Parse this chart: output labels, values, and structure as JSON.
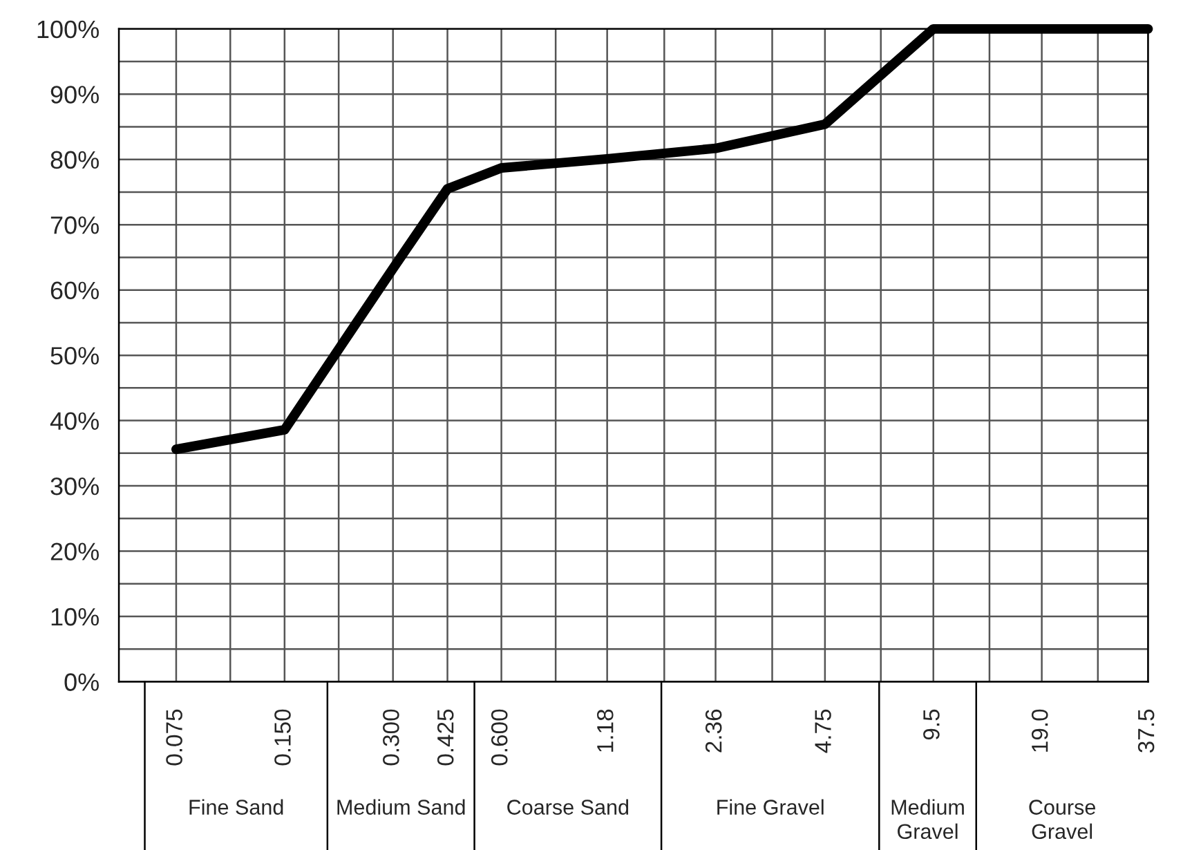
{
  "chart_data": {
    "type": "line",
    "log": "x",
    "x": [
      0.075,
      0.15,
      0.3,
      0.425,
      0.6,
      1.18,
      2.36,
      4.75,
      9.5,
      19.0,
      37.5
    ],
    "series": [
      {
        "color": "#000000",
        "values": [
          35.6,
          38.6,
          63.3,
          75.5,
          78.7,
          80.1,
          81.7,
          85.4,
          100,
          100,
          100
        ]
      }
    ],
    "xlim": [
      0.052,
      37.5
    ],
    "xticks": [
      {
        "value": 0.075,
        "label": "0.075"
      },
      {
        "value": 0.106,
        "label": null
      },
      {
        "value": 0.15,
        "label": "0.150"
      },
      {
        "value": 0.212,
        "label": null
      },
      {
        "value": 0.3,
        "label": "0.300"
      },
      {
        "value": 0.425,
        "label": "0.425"
      },
      {
        "value": 0.6,
        "label": "0.600"
      },
      {
        "value": 0.849,
        "label": null
      },
      {
        "value": 1.18,
        "label": "1.18"
      },
      {
        "value": 1.7,
        "label": null
      },
      {
        "value": 2.36,
        "label": "2.36"
      },
      {
        "value": 3.39,
        "label": null
      },
      {
        "value": 4.75,
        "label": "4.75"
      },
      {
        "value": 6.79,
        "label": null
      },
      {
        "value": 9.5,
        "label": "9.5"
      },
      {
        "value": 13.6,
        "label": null
      },
      {
        "value": 19.0,
        "label": "19.0"
      },
      {
        "value": 27.2,
        "label": null
      },
      {
        "value": 37.5,
        "label": "37.5"
      }
    ],
    "ylim": [
      0,
      100
    ],
    "yticks": [
      {
        "value": 0,
        "label": "0%"
      },
      {
        "value": 5,
        "label": null
      },
      {
        "value": 10,
        "label": "10%"
      },
      {
        "value": 15,
        "label": null
      },
      {
        "value": 20,
        "label": "20%"
      },
      {
        "value": 25,
        "label": null
      },
      {
        "value": 30,
        "label": "30%"
      },
      {
        "value": 35,
        "label": null
      },
      {
        "value": 40,
        "label": "40%"
      },
      {
        "value": 45,
        "label": null
      },
      {
        "value": 50,
        "label": "50%"
      },
      {
        "value": 55,
        "label": null
      },
      {
        "value": 60,
        "label": "60%"
      },
      {
        "value": 65,
        "label": null
      },
      {
        "value": 70,
        "label": "70%"
      },
      {
        "value": 75,
        "label": null
      },
      {
        "value": 80,
        "label": "80%"
      },
      {
        "value": 85,
        "label": null
      },
      {
        "value": 90,
        "label": "90%"
      },
      {
        "value": 95,
        "label": null
      },
      {
        "value": 100,
        "label": "100%"
      }
    ],
    "grid": true,
    "marker": "none",
    "line_style": "solid",
    "legend": false,
    "annotations": [
      "Fine Sand",
      "Medium Sand",
      "Coarse Sand",
      "Fine Gravel",
      "Medium\nGravel",
      "Course\nGravel"
    ]
  }
}
